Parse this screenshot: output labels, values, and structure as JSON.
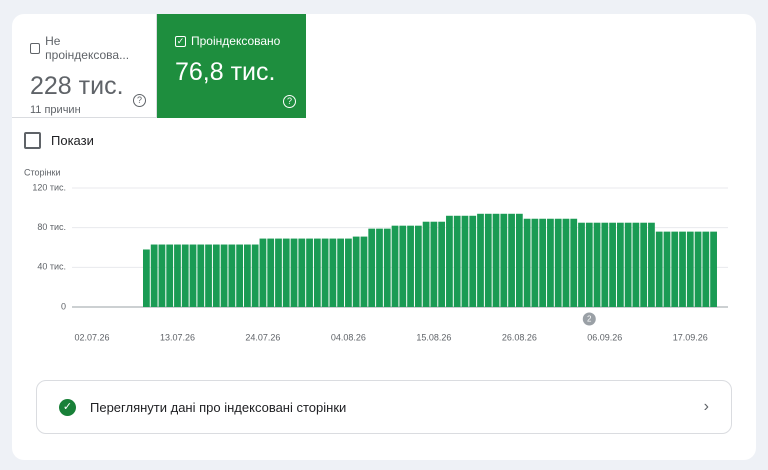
{
  "tabs": [
    {
      "label": "Не проіндексова...",
      "value": "228 тис.",
      "sub": "11 причин"
    },
    {
      "label": "Проіндексовано",
      "value": "76,8 тис."
    }
  ],
  "show_label": "Покази",
  "chart_data": {
    "type": "bar",
    "y_label": "Сторінки",
    "color": "#1a9b54",
    "grid": true,
    "categories": [
      "02.07.26",
      null,
      null,
      null,
      null,
      null,
      null,
      null,
      null,
      null,
      null,
      "13.07.26",
      null,
      null,
      null,
      null,
      null,
      null,
      null,
      null,
      null,
      null,
      "24.07.26",
      null,
      null,
      null,
      null,
      null,
      null,
      null,
      null,
      null,
      null,
      "04.08.26",
      null,
      null,
      null,
      null,
      null,
      null,
      null,
      null,
      null,
      null,
      "15.08.26",
      null,
      null,
      null,
      null,
      null,
      null,
      null,
      null,
      null,
      null,
      "26.08.26",
      null,
      null,
      null,
      null,
      null,
      null,
      null,
      null,
      null,
      null,
      "06.09.26",
      null,
      null,
      null,
      null,
      null,
      null,
      null,
      null,
      null,
      null,
      "17.09.26",
      null,
      null,
      null
    ],
    "values": [
      null,
      null,
      null,
      null,
      null,
      null,
      null,
      58,
      63,
      63,
      63,
      63,
      63,
      63,
      63,
      63,
      63,
      63,
      63,
      63,
      63,
      63,
      69,
      69,
      69,
      69,
      69,
      69,
      69,
      69,
      69,
      69,
      69,
      69,
      71,
      71,
      79,
      79,
      79,
      82,
      82,
      82,
      82,
      86,
      86,
      86,
      92,
      92,
      92,
      92,
      94,
      94,
      94,
      94,
      94,
      94,
      89,
      89,
      89,
      89,
      89,
      89,
      89,
      85,
      85,
      85,
      85,
      85,
      85,
      85,
      85,
      85,
      85,
      76,
      76,
      76,
      76,
      76,
      76,
      76,
      76
    ],
    "ylim": [
      0,
      120
    ],
    "yticks": [
      0,
      {
        "value": 40,
        "label": "40 тис."
      },
      {
        "value": 80,
        "label": "80 тис."
      },
      {
        "value": 120,
        "label": "120 тис."
      }
    ],
    "annotation": "2"
  },
  "link": "Переглянути дані про індексовані сторінки"
}
